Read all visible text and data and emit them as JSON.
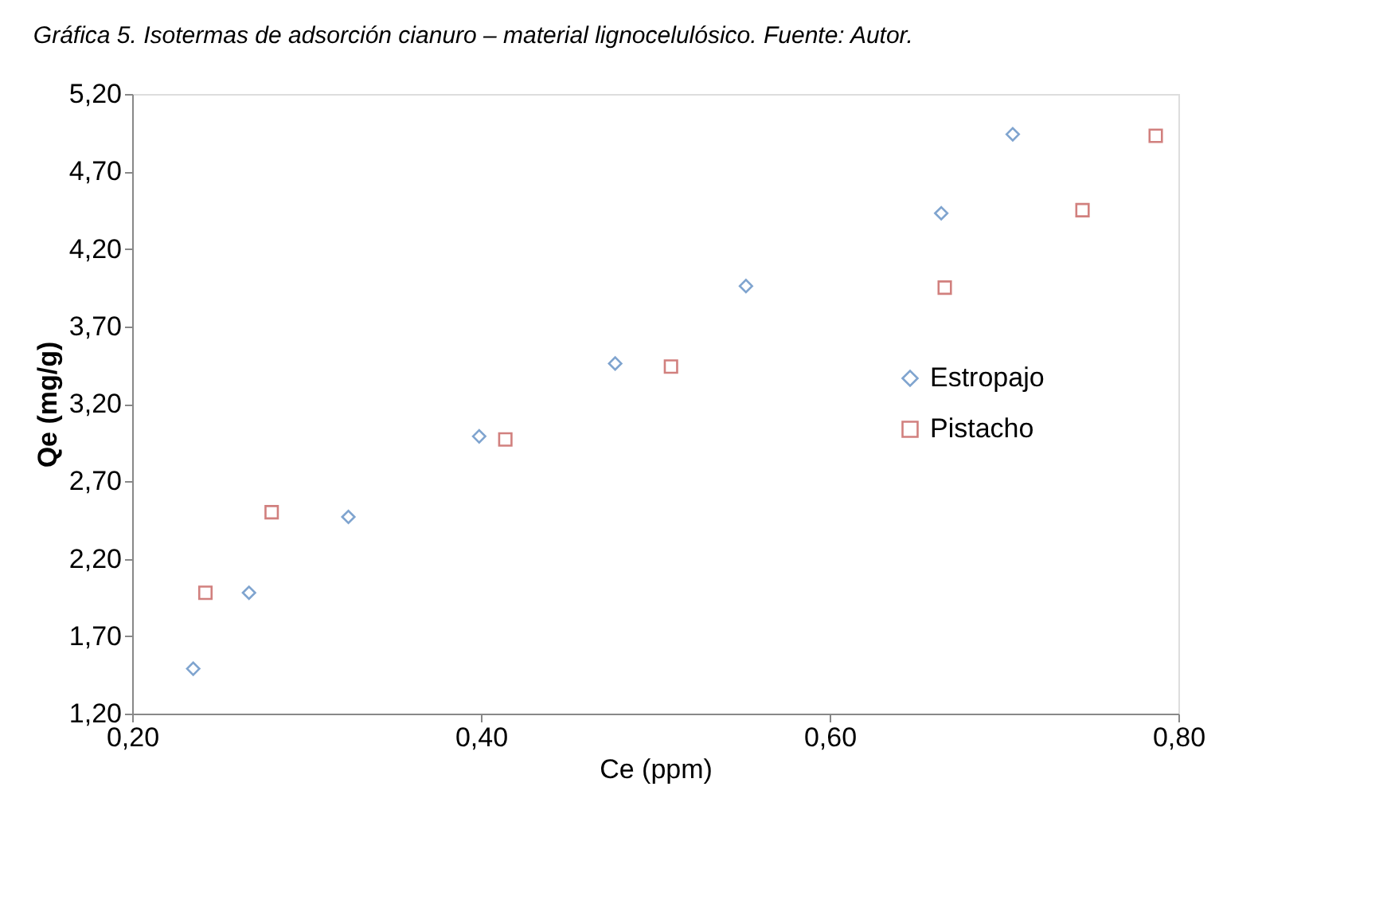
{
  "chart_data": {
    "type": "scatter",
    "title": "Gráfica 5.  Isotermas de adsorción cianuro – material lignocelulósico.  Fuente: Autor.",
    "xlabel": "Ce (ppm)",
    "ylabel": "Qe (mg/g)",
    "xlim": [
      0.2,
      0.8
    ],
    "xticks": [
      {
        "value": 0.2,
        "label": "0,20"
      },
      {
        "value": 0.4,
        "label": "0,40"
      },
      {
        "value": 0.6,
        "label": "0,60"
      },
      {
        "value": 0.8,
        "label": "0,80"
      }
    ],
    "ylim": [
      1.2,
      5.2
    ],
    "yticks": [
      {
        "value": 1.2,
        "label": "1,20"
      },
      {
        "value": 1.7,
        "label": "1,70"
      },
      {
        "value": 2.2,
        "label": "2,20"
      },
      {
        "value": 2.7,
        "label": "2,70"
      },
      {
        "value": 3.2,
        "label": "3,20"
      },
      {
        "value": 3.7,
        "label": "3,70"
      },
      {
        "value": 4.2,
        "label": "4,20"
      },
      {
        "value": 4.7,
        "label": "4,70"
      },
      {
        "value": 5.2,
        "label": "5,20"
      }
    ],
    "grid": false,
    "legend": "right",
    "series": [
      {
        "name": "Estropajo",
        "color": "#4a7ebb",
        "marker": "diamond",
        "x": [
          0.235,
          0.267,
          0.324,
          0.399,
          0.477,
          0.552,
          0.664,
          0.705
        ],
        "values": [
          1.49,
          1.98,
          2.47,
          2.99,
          3.46,
          3.96,
          4.43,
          4.94
        ]
      },
      {
        "name": "Pistacho",
        "color": "#be4b48",
        "marker": "square",
        "x": [
          0.242,
          0.28,
          0.414,
          0.509,
          0.666,
          0.745,
          0.787
        ],
        "values": [
          1.98,
          2.5,
          2.97,
          3.44,
          3.95,
          4.45,
          4.93
        ]
      }
    ]
  }
}
